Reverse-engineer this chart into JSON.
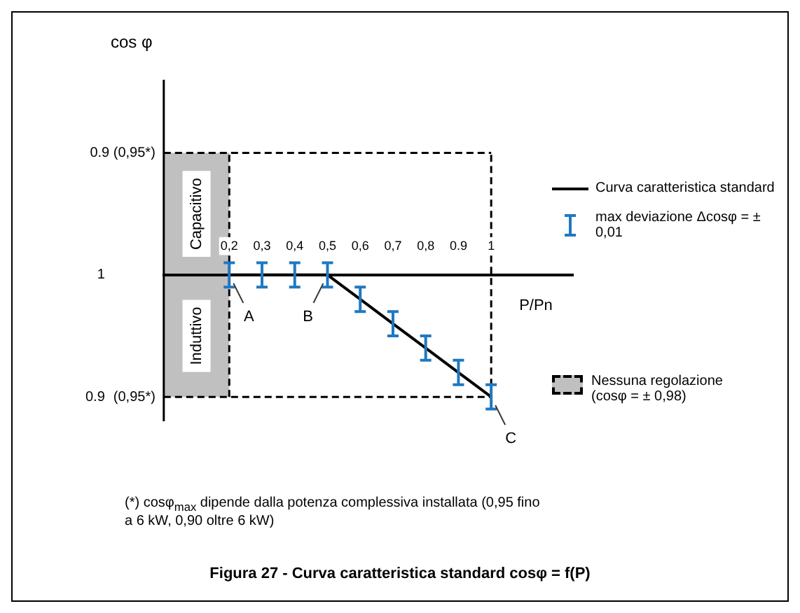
{
  "chart_data": {
    "type": "line",
    "title": "Figura 27 - Curva caratteristica standard cosφ = f(P)",
    "xlabel": "P/Pn",
    "ylabel": "cos φ",
    "xlim": [
      0,
      1.25
    ],
    "xticks": [
      {
        "value": 0.2,
        "label": "0,2"
      },
      {
        "value": 0.3,
        "label": "0,3"
      },
      {
        "value": 0.4,
        "label": "0,4"
      },
      {
        "value": 0.5,
        "label": "0,5"
      },
      {
        "value": 0.6,
        "label": "0,6"
      },
      {
        "value": 0.7,
        "label": "0,7"
      },
      {
        "value": 0.8,
        "label": "0,8"
      },
      {
        "value": 0.9,
        "label": "0.9"
      },
      {
        "value": 1,
        "label": "1"
      }
    ],
    "ylim": [
      0.88,
      1.16
    ],
    "yticks": [
      0.9,
      1
    ],
    "series": [
      {
        "name": "Curva caratteristica standard",
        "color": "#000000",
        "x": [
          0.2,
          0.3,
          0.4,
          0.5,
          0.6,
          0.7,
          0.8,
          0.9,
          1
        ],
        "values": [
          1,
          1,
          1,
          1,
          0.98,
          0.96,
          0.94,
          0.92,
          0.9
        ],
        "errors": [
          0.01,
          0.01,
          0.01,
          0.01,
          0.01,
          0.01,
          0.01,
          0.01,
          0.01
        ]
      }
    ],
    "bands": [
      {
        "axis": "x",
        "from": 0,
        "to": 0.2,
        "color": "#c0c0c0"
      }
    ],
    "ref_lines": [
      {
        "axis": "x",
        "value": 0.2,
        "line_style": "dashed"
      },
      {
        "axis": "x",
        "value": 1,
        "line_style": "dashed"
      },
      {
        "axis": "y",
        "value": 1.1,
        "line_style": "dashed"
      },
      {
        "axis": "y",
        "value": 0.9,
        "line_style": "dashed"
      }
    ],
    "annotations": [
      "max deviazione Δcosφ = ± 0,01",
      "(*) cosφ$_{max}$ dipende dalla potenza complessiva installata (0,95 fino a 6 kW, 0,90 oltre 6 kW)",
      "Capacitivo",
      "Induttivo",
      "(0,95*)",
      "0.9 (0,95*)",
      "Nessuna regolazione (cosφ = ± 0,98)",
      {
        "text": "A",
        "x": 0.2,
        "y": 1
      },
      {
        "text": "B",
        "x": 0.5,
        "y": 1
      },
      {
        "text": "C",
        "x": 1,
        "y": 0.9
      }
    ],
    "legend": "right",
    "marker": "none",
    "line_style": "solid",
    "grid": false
  }
}
